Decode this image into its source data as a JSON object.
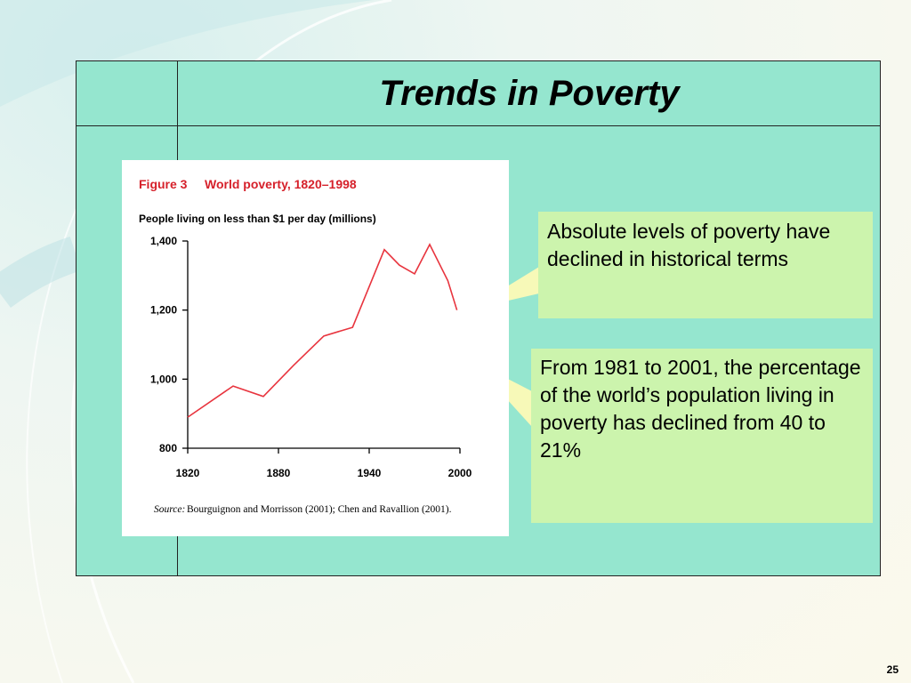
{
  "slide": {
    "title": "Trends in Poverty",
    "page_number": "25"
  },
  "callouts": [
    {
      "text": "Absolute levels of poverty have declined  in historical terms"
    },
    {
      "text": "From 1981 to 2001, the percentage of the world’s population living in poverty has declined from 40 to 21%"
    }
  ],
  "colors": {
    "table_bg": "#95e6cf",
    "callout_bg": "#ccf4ad",
    "line": "#e8343e",
    "figure_title": "#d6212b"
  },
  "chart_data": {
    "type": "line",
    "figure_label": "Figure 3",
    "title": "World poverty, 1820–1998",
    "subtitle": "People living on less than $1 per day (millions)",
    "xlabel": "",
    "ylabel": "",
    "xlim": [
      1820,
      2000
    ],
    "ylim": [
      800,
      1400
    ],
    "x_ticks": [
      1820,
      1880,
      1940,
      2000
    ],
    "x_tick_labels": [
      "1820",
      "1880",
      "1940",
      "2000"
    ],
    "y_ticks": [
      800,
      1000,
      1200,
      1400
    ],
    "y_tick_labels": [
      "800",
      "1,000",
      "1,200",
      "1,400"
    ],
    "grid": false,
    "series": [
      {
        "x": [
          1820,
          1850,
          1870,
          1890,
          1910,
          1929,
          1950,
          1960,
          1970,
          1980,
          1992,
          1998
        ],
        "values": [
          890,
          980,
          950,
          1040,
          1125,
          1150,
          1375,
          1330,
          1305,
          1390,
          1285,
          1200
        ]
      }
    ],
    "source_label": "Source:",
    "source": "Bourguignon and Morrisson (2001); Chen and Ravallion (2001)."
  }
}
